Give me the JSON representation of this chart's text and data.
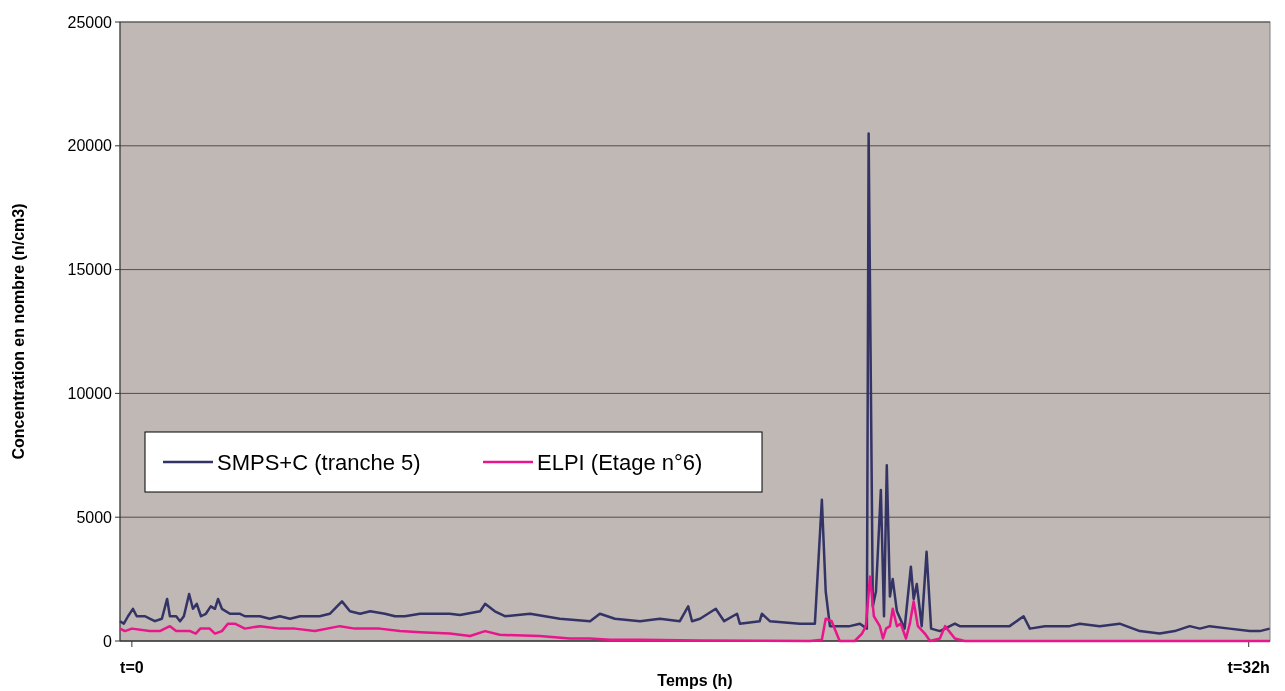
{
  "chart_data": {
    "type": "line",
    "xlabel": "Temps (h)",
    "ylabel": "Concentration en nombre (n/cm3)",
    "xlim": [
      -0.34,
      32.61
    ],
    "xticks": [
      {
        "value": 0,
        "label": "t=0"
      },
      {
        "value": 32,
        "label": "t=32h"
      }
    ],
    "ylim": [
      0,
      25000
    ],
    "yticks": [
      0,
      5000,
      10000,
      15000,
      20000,
      25000
    ],
    "grid": "y",
    "legend": "left",
    "series": [
      {
        "name": "SMPS+C (tranche 5)",
        "color": "#333366",
        "x": [
          -0.34,
          -0.23,
          -0.11,
          0.03,
          0.14,
          0.38,
          0.51,
          0.66,
          0.86,
          1.01,
          1.09,
          1.27,
          1.38,
          1.49,
          1.64,
          1.75,
          1.86,
          1.98,
          2.12,
          2.26,
          2.38,
          2.47,
          2.58,
          2.81,
          3.1,
          3.24,
          3.67,
          3.95,
          4.24,
          4.53,
          4.82,
          5.11,
          5.38,
          5.67,
          6.02,
          6.25,
          6.54,
          6.83,
          7.25,
          7.54,
          7.82,
          8.26,
          9.11,
          9.4,
          9.98,
          10.12,
          10.4,
          10.69,
          11.41,
          12.26,
          13.13,
          13.41,
          13.84,
          14.56,
          15.13,
          15.7,
          15.94,
          16.05,
          16.28,
          16.73,
          16.97,
          17.34,
          17.42,
          17.99,
          18.05,
          18.28,
          19.14,
          19.57,
          19.77,
          19.88,
          20.0,
          20.57,
          20.86,
          21.06,
          21.11,
          21.23,
          21.32,
          21.46,
          21.55,
          21.63,
          21.72,
          21.8,
          21.92,
          22.14,
          22.32,
          22.4,
          22.49,
          22.63,
          22.77,
          22.9,
          23.15,
          23.44,
          23.58,
          23.72,
          24.15,
          24.44,
          24.87,
          25.15,
          25.55,
          25.73,
          26.16,
          26.87,
          27.16,
          27.73,
          28.3,
          28.88,
          29.45,
          29.88,
          30.31,
          30.6,
          30.88,
          31.45,
          32.03,
          32.32,
          32.6
        ],
        "values": [
          800,
          700,
          1000,
          1300,
          1000,
          1000,
          900,
          800,
          900,
          1700,
          1000,
          1000,
          800,
          1000,
          1900,
          1300,
          1500,
          1000,
          1100,
          1400,
          1300,
          1700,
          1300,
          1100,
          1100,
          1000,
          1000,
          900,
          1000,
          900,
          1000,
          1000,
          1000,
          1100,
          1600,
          1200,
          1100,
          1200,
          1100,
          1000,
          1000,
          1100,
          1100,
          1050,
          1200,
          1500,
          1200,
          1000,
          1100,
          900,
          800,
          1100,
          900,
          800,
          900,
          800,
          1400,
          800,
          900,
          1300,
          800,
          1100,
          700,
          800,
          1100,
          800,
          700,
          700,
          5700,
          2000,
          600,
          600,
          700,
          500,
          20500,
          1400,
          2000,
          6100,
          1000,
          7100,
          1800,
          2500,
          1200,
          500,
          3000,
          1700,
          2300,
          600,
          3600,
          500,
          400,
          600,
          700,
          600,
          600,
          600,
          600,
          600,
          1000,
          500,
          600,
          600,
          700,
          600,
          700,
          400,
          300,
          400,
          600,
          500,
          600,
          500,
          400,
          400,
          500
        ]
      },
      {
        "name": "ELPI (Etage n°6)",
        "color": "#e8168a",
        "x": [
          -0.34,
          -0.2,
          0,
          0.51,
          0.8,
          1.09,
          1.27,
          1.67,
          1.83,
          1.96,
          2.23,
          2.38,
          2.58,
          2.75,
          2.95,
          3.24,
          3.67,
          4.24,
          4.67,
          5.24,
          5.96,
          6.39,
          7.1,
          7.68,
          8.26,
          9.11,
          9.69,
          10.12,
          10.54,
          11.69,
          12.55,
          13.13,
          13.7,
          14.56,
          16.28,
          17.99,
          19.43,
          19.77,
          19.88,
          20.05,
          20.28,
          20.71,
          20.92,
          21.03,
          21.15,
          21.26,
          21.43,
          21.52,
          21.61,
          21.72,
          21.8,
          21.92,
          22.03,
          22.18,
          22.29,
          22.4,
          22.52,
          22.72,
          22.87,
          23.15,
          23.3,
          23.58,
          23.86,
          24.87,
          27.73,
          32.6
        ],
        "values": [
          500,
          400,
          500,
          400,
          400,
          600,
          400,
          400,
          300,
          500,
          500,
          300,
          400,
          700,
          700,
          500,
          600,
          500,
          500,
          400,
          600,
          500,
          500,
          400,
          350,
          300,
          200,
          400,
          250,
          200,
          100,
          100,
          50,
          50,
          20,
          10,
          0,
          50,
          900,
          800,
          0,
          0,
          300,
          600,
          2600,
          1000,
          600,
          100,
          500,
          600,
          1300,
          600,
          700,
          100,
          700,
          1600,
          600,
          300,
          0,
          100,
          600,
          100,
          0,
          0,
          0,
          0
        ]
      }
    ]
  }
}
